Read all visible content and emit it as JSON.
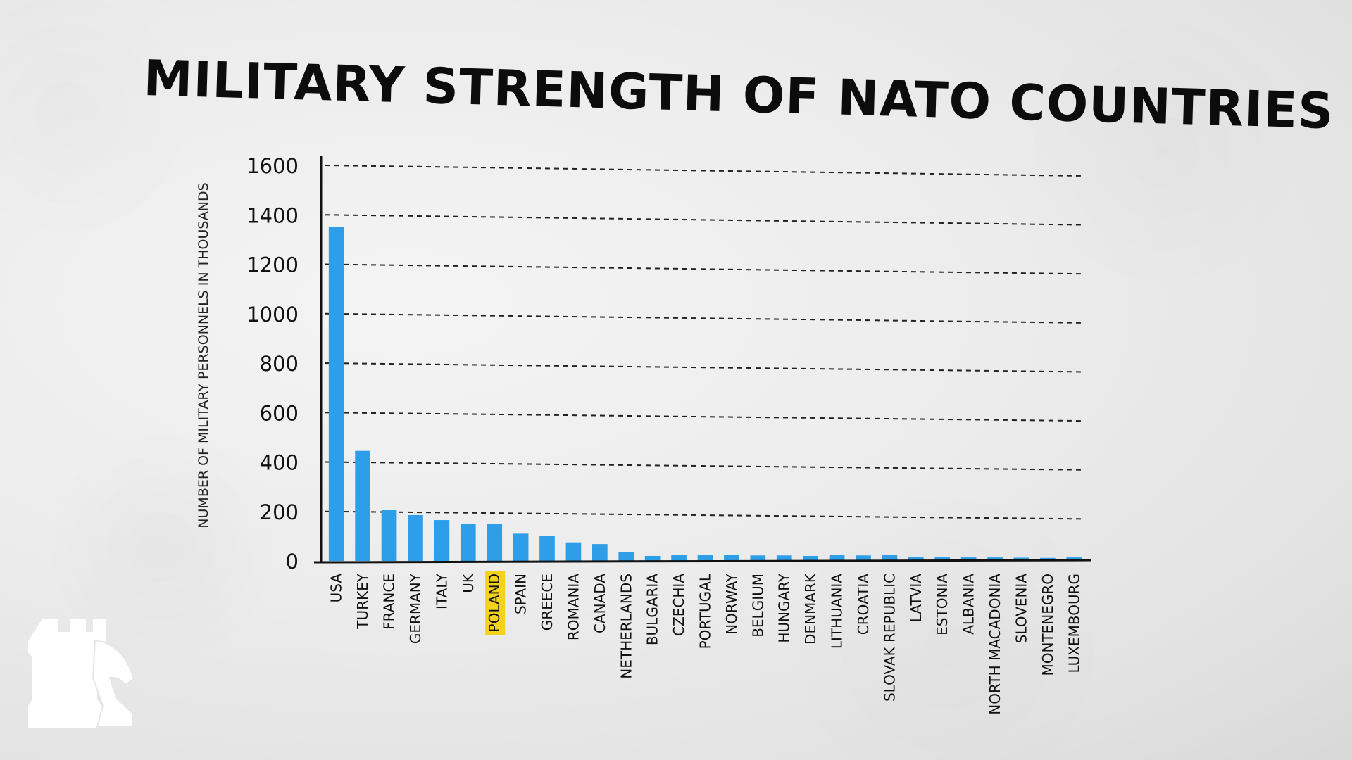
{
  "chart_data": {
    "type": "bar",
    "title": "MILITARY STRENGTH OF NATO COUNTRIES",
    "ylabel": "NUMBER OF MILITARY PERSONNELS IN THOUSANDS",
    "xlabel": "",
    "ylim": [
      0,
      1600
    ],
    "yticks": [
      0,
      200,
      400,
      600,
      800,
      1000,
      1200,
      1400,
      1600
    ],
    "grid": "dashed horizontal",
    "highlighted_category": "POLAND",
    "categories": [
      "USA",
      "TURKEY",
      "FRANCE",
      "GERMANY",
      "ITALY",
      "UK",
      "POLAND",
      "SPAIN",
      "GREECE",
      "ROMANIA",
      "CANADA",
      "NETHERLANDS",
      "BULGARIA",
      "CZECHIA",
      "PORTUGAL",
      "NORWAY",
      "BELGIUM",
      "HUNGARY",
      "DENMARK",
      "LITHUANIA",
      "CROATIA",
      "SLOVAK REPUBLIC",
      "LATVIA",
      "ESTONIA",
      "ALBANIA",
      "NORTH MACADONIA",
      "SLOVENIA",
      "MONTENEGRO",
      "LUXEMBOURG"
    ],
    "values": [
      1350,
      445,
      205,
      185,
      165,
      150,
      150,
      110,
      102,
      75,
      68,
      35,
      20,
      24,
      23,
      23,
      22,
      22,
      20,
      24,
      22,
      25,
      16,
      15,
      14,
      14,
      13,
      12,
      14
    ]
  },
  "colors": {
    "bar": "#2f9ee9",
    "highlight": "#f2d21b",
    "axis": "#111111",
    "grid": "#222222"
  },
  "logo": {
    "icon": "chess-rook-knight-icon"
  }
}
